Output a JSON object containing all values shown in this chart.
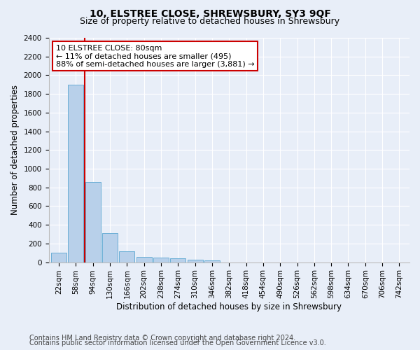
{
  "title": "10, ELSTREE CLOSE, SHREWSBURY, SY3 9QF",
  "subtitle": "Size of property relative to detached houses in Shrewsbury",
  "xlabel": "Distribution of detached houses by size in Shrewsbury",
  "ylabel": "Number of detached properties",
  "bar_labels": [
    "22sqm",
    "58sqm",
    "94sqm",
    "130sqm",
    "166sqm",
    "202sqm",
    "238sqm",
    "274sqm",
    "310sqm",
    "346sqm",
    "382sqm",
    "418sqm",
    "454sqm",
    "490sqm",
    "526sqm",
    "562sqm",
    "598sqm",
    "634sqm",
    "670sqm",
    "706sqm",
    "742sqm"
  ],
  "bar_values": [
    100,
    1900,
    855,
    315,
    115,
    58,
    47,
    40,
    28,
    18,
    0,
    0,
    0,
    0,
    0,
    0,
    0,
    0,
    0,
    0,
    0
  ],
  "bar_color": "#b8d0ea",
  "bar_edgecolor": "#6aaed6",
  "vline_x": 1.5,
  "vline_color": "#cc0000",
  "ylim": [
    0,
    2400
  ],
  "yticks": [
    0,
    200,
    400,
    600,
    800,
    1000,
    1200,
    1400,
    1600,
    1800,
    2000,
    2200,
    2400
  ],
  "annotation_text": "10 ELSTREE CLOSE: 80sqm\n← 11% of detached houses are smaller (495)\n88% of semi-detached houses are larger (3,881) →",
  "annotation_box_facecolor": "#ffffff",
  "annotation_box_edgecolor": "#cc0000",
  "footer1": "Contains HM Land Registry data © Crown copyright and database right 2024.",
  "footer2": "Contains public sector information licensed under the Open Government Licence v3.0.",
  "bg_color": "#e8eef8",
  "plot_bg_color": "#e8eef8",
  "grid_color": "#ffffff",
  "title_fontsize": 10,
  "subtitle_fontsize": 9,
  "axis_label_fontsize": 8.5,
  "tick_fontsize": 7.5,
  "annotation_fontsize": 8,
  "footer_fontsize": 7
}
